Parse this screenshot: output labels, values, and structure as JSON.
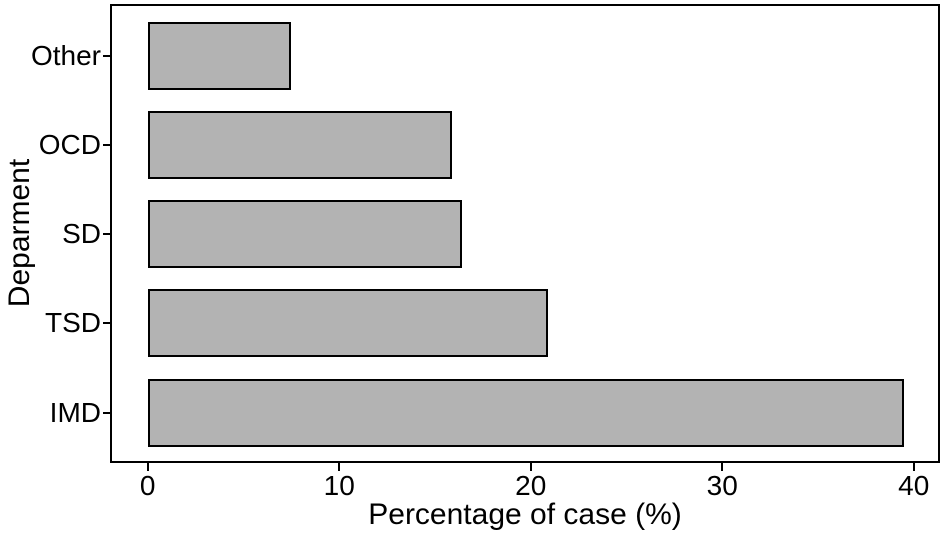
{
  "chart_data": {
    "type": "bar",
    "orientation": "horizontal",
    "title": "",
    "xlabel": "Percentage of case (%)",
    "ylabel": "Deparment",
    "categories": [
      "Other",
      "OCD",
      "SD",
      "TSD",
      "IMD"
    ],
    "values": [
      7.5,
      15.9,
      16.4,
      20.9,
      39.5
    ],
    "xticks": [
      0,
      10,
      20,
      30,
      40
    ],
    "xlim": [
      -1.97,
      41.37
    ],
    "grid": false,
    "legend": "none",
    "bar_fill": "#b3b3b3",
    "bar_stroke": "#000000",
    "panel_border_color": "#000000",
    "background": "#ffffff",
    "text_color": "#000000"
  }
}
